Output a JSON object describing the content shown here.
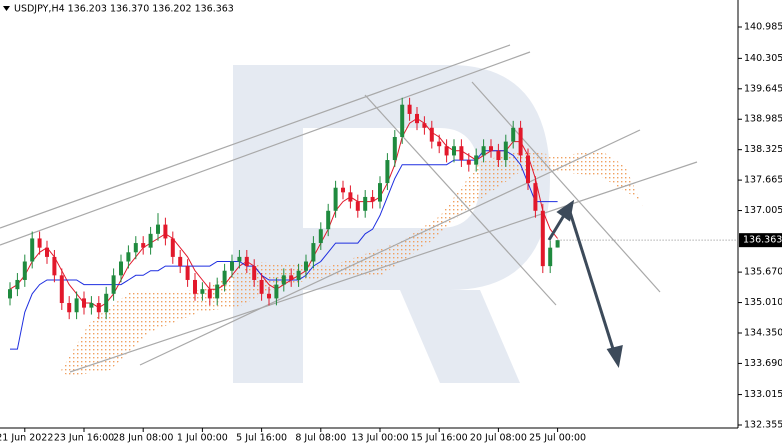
{
  "chart_data": {
    "type": "candlestick",
    "title": "USDJPY,H4  136.203 136.370 136.202 136.363",
    "up_color": "#1f8a3e",
    "down_color": "#e2182b",
    "categories": [
      null,
      null,
      "21 Jun 2022",
      null,
      null,
      null,
      null,
      null,
      null,
      null,
      "23 Jun 16:00",
      null,
      null,
      null,
      null,
      null,
      null,
      null,
      "28 Jun 08:00",
      null,
      null,
      null,
      null,
      null,
      null,
      null,
      "1 Jul 00:00",
      null,
      null,
      null,
      null,
      null,
      null,
      null,
      "5 Jul 16:00",
      null,
      null,
      null,
      null,
      null,
      null,
      null,
      "8 Jul 08:00",
      null,
      null,
      null,
      null,
      null,
      null,
      null,
      "13 Jul 00:00",
      null,
      null,
      null,
      null,
      null,
      null,
      null,
      "15 Jul 16:00",
      null,
      null,
      null,
      null,
      null,
      null,
      null,
      "20 Jul 08:00",
      null,
      null,
      null,
      null,
      null,
      null,
      null,
      "25 Jul 00:00"
    ],
    "ohlc": [
      [
        135.1,
        135.45,
        134.95,
        135.3
      ],
      [
        135.3,
        135.65,
        135.15,
        135.5
      ],
      [
        135.5,
        136.05,
        135.35,
        135.9
      ],
      [
        135.9,
        136.55,
        135.75,
        136.4
      ],
      [
        136.4,
        136.55,
        136.05,
        136.2
      ],
      [
        136.2,
        136.35,
        135.85,
        136.0
      ],
      [
        136.0,
        136.15,
        135.45,
        135.6
      ],
      [
        135.6,
        135.75,
        134.85,
        135.0
      ],
      [
        135.0,
        135.15,
        134.65,
        134.8
      ],
      [
        134.8,
        135.25,
        134.65,
        135.1
      ],
      [
        135.1,
        135.25,
        134.75,
        134.9
      ],
      [
        134.9,
        135.15,
        134.75,
        135.0
      ],
      [
        135.0,
        135.15,
        134.65,
        134.8
      ],
      [
        134.8,
        135.35,
        134.65,
        135.2
      ],
      [
        135.2,
        135.75,
        135.05,
        135.6
      ],
      [
        135.6,
        136.05,
        135.45,
        135.9
      ],
      [
        135.9,
        136.25,
        135.75,
        136.1
      ],
      [
        136.1,
        136.45,
        135.95,
        136.3
      ],
      [
        136.3,
        136.45,
        136.05,
        136.2
      ],
      [
        136.2,
        136.65,
        136.05,
        136.5
      ],
      [
        136.5,
        136.95,
        136.35,
        136.7
      ],
      [
        136.7,
        136.85,
        136.25,
        136.4
      ],
      [
        136.4,
        136.55,
        135.85,
        136.0
      ],
      [
        136.0,
        136.15,
        135.65,
        135.8
      ],
      [
        135.8,
        135.95,
        135.35,
        135.5
      ],
      [
        135.5,
        135.65,
        135.05,
        135.2
      ],
      [
        135.2,
        135.45,
        135.05,
        135.3
      ],
      [
        135.3,
        135.45,
        134.95,
        135.1
      ],
      [
        135.1,
        135.55,
        134.95,
        135.4
      ],
      [
        135.4,
        135.85,
        135.25,
        135.7
      ],
      [
        135.7,
        136.05,
        135.55,
        135.9
      ],
      [
        135.9,
        136.15,
        135.75,
        136.0
      ],
      [
        136.0,
        136.15,
        135.65,
        135.8
      ],
      [
        135.8,
        135.95,
        135.35,
        135.5
      ],
      [
        135.5,
        135.65,
        135.05,
        135.2
      ],
      [
        135.2,
        135.35,
        134.95,
        135.1
      ],
      [
        135.1,
        135.55,
        134.95,
        135.4
      ],
      [
        135.4,
        135.75,
        135.25,
        135.6
      ],
      [
        135.6,
        135.75,
        135.35,
        135.5
      ],
      [
        135.5,
        135.85,
        135.35,
        135.7
      ],
      [
        135.7,
        136.05,
        135.55,
        135.9
      ],
      [
        135.9,
        136.45,
        135.75,
        136.3
      ],
      [
        136.3,
        136.75,
        136.15,
        136.6
      ],
      [
        136.6,
        137.15,
        136.45,
        137.0
      ],
      [
        137.0,
        137.65,
        136.85,
        137.5
      ],
      [
        137.5,
        137.65,
        137.25,
        137.4
      ],
      [
        137.4,
        137.55,
        137.05,
        137.2
      ],
      [
        137.2,
        137.35,
        136.85,
        137.0
      ],
      [
        137.0,
        137.45,
        136.85,
        137.3
      ],
      [
        137.3,
        137.45,
        137.05,
        137.2
      ],
      [
        137.2,
        137.75,
        137.05,
        137.6
      ],
      [
        137.6,
        138.25,
        137.45,
        138.1
      ],
      [
        138.1,
        138.75,
        137.95,
        138.6
      ],
      [
        138.6,
        139.45,
        138.45,
        139.3
      ],
      [
        139.3,
        139.45,
        138.95,
        139.1
      ],
      [
        139.1,
        139.25,
        138.75,
        138.9
      ],
      [
        138.9,
        139.05,
        138.65,
        138.8
      ],
      [
        138.8,
        138.95,
        138.35,
        138.5
      ],
      [
        138.5,
        138.65,
        138.25,
        138.4
      ],
      [
        138.4,
        138.55,
        138.05,
        138.2
      ],
      [
        138.2,
        138.55,
        138.05,
        138.4
      ],
      [
        138.4,
        138.55,
        137.95,
        138.1
      ],
      [
        138.1,
        138.25,
        137.85,
        138.0
      ],
      [
        138.0,
        138.35,
        137.85,
        138.2
      ],
      [
        138.2,
        138.55,
        138.05,
        138.4
      ],
      [
        138.4,
        138.55,
        138.15,
        138.3
      ],
      [
        138.3,
        138.45,
        137.95,
        138.1
      ],
      [
        138.1,
        138.65,
        137.95,
        138.5
      ],
      [
        138.5,
        138.95,
        138.35,
        138.8
      ],
      [
        138.8,
        138.95,
        138.05,
        138.2
      ],
      [
        138.2,
        138.35,
        137.45,
        137.6
      ],
      [
        137.6,
        137.75,
        136.85,
        137.0
      ],
      [
        137.0,
        137.15,
        135.65,
        135.8
      ],
      [
        135.8,
        136.35,
        135.65,
        136.2
      ],
      [
        136.203,
        136.37,
        136.202,
        136.363
      ]
    ],
    "series": [
      {
        "color": "#e2182b",
        "values": [
          135.3,
          135.4,
          135.6,
          135.9,
          136.1,
          136.2,
          136.0,
          135.7,
          135.4,
          135.2,
          135.0,
          135.0,
          134.9,
          135.0,
          135.2,
          135.5,
          135.8,
          136.0,
          136.2,
          136.3,
          136.4,
          136.5,
          136.4,
          136.2,
          136.0,
          135.7,
          135.5,
          135.3,
          135.3,
          135.4,
          135.6,
          135.8,
          135.9,
          135.8,
          135.6,
          135.4,
          135.3,
          135.4,
          135.5,
          135.6,
          135.7,
          136.0,
          136.3,
          136.6,
          137.0,
          137.2,
          137.3,
          137.2,
          137.2,
          137.2,
          137.3,
          137.6,
          138.0,
          138.6,
          138.9,
          139.0,
          138.9,
          138.7,
          138.6,
          138.4,
          138.3,
          138.3,
          138.2,
          138.1,
          138.2,
          138.3,
          138.3,
          138.3,
          138.5,
          138.5,
          138.2,
          137.7,
          137.0,
          136.6,
          136.4
        ]
      },
      {
        "color": "#1f2fe0",
        "values": [
          134.0,
          134.0,
          134.8,
          135.2,
          135.4,
          135.5,
          135.5,
          135.5,
          135.5,
          135.5,
          135.4,
          135.4,
          135.4,
          135.4,
          135.4,
          135.4,
          135.5,
          135.6,
          135.6,
          135.7,
          135.7,
          135.8,
          135.8,
          135.8,
          135.8,
          135.8,
          135.8,
          135.8,
          135.9,
          135.9,
          135.9,
          135.9,
          135.8,
          135.8,
          135.6,
          135.5,
          135.5,
          135.5,
          135.5,
          135.5,
          135.6,
          135.8,
          135.9,
          136.1,
          136.3,
          136.3,
          136.3,
          136.3,
          136.5,
          136.6,
          136.9,
          137.3,
          137.7,
          138.0,
          138.0,
          138.0,
          138.0,
          138.0,
          138.0,
          138.0,
          138.1,
          138.1,
          138.1,
          138.1,
          138.3,
          138.3,
          138.3,
          138.3,
          138.2,
          138.0,
          137.6,
          137.2,
          137.2,
          137.2,
          137.2
        ]
      }
    ],
    "ylim": [
      132.355,
      140.985
    ],
    "yticks": [
      140.985,
      140.305,
      139.645,
      138.985,
      138.325,
      137.665,
      137.005,
      {
        "value": 135.67,
        "label": "135.670"
      },
      {
        "value": 135.01,
        "label": "135.010"
      },
      {
        "value": 134.35,
        "label": "134.350"
      },
      {
        "value": 133.69,
        "label": "133.690"
      },
      133.015,
      132.355
    ],
    "grid": false
  }
}
